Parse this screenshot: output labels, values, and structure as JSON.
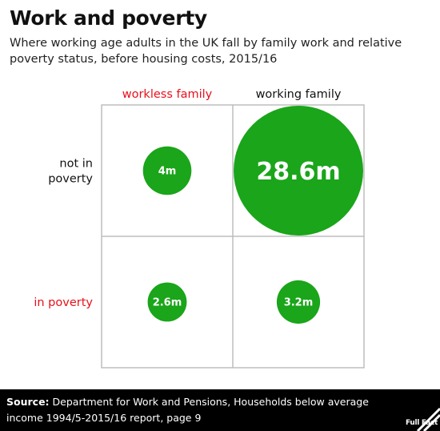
{
  "title": "Work and poverty",
  "subtitle": "Where working age adults in the UK fall by family work and relative poverty status, before housing costs, 2015/16",
  "source_label": "Source:",
  "source_text": "Department for Work and Pensions, Households below average income 1994/5-2015/16 report, page 9",
  "brand": "Full Fact",
  "colors": {
    "bubble": "#1aa51a",
    "highlight": "#e8101a",
    "text": "#111111",
    "grid": "#bdbdbd"
  },
  "chart_data": {
    "type": "bubble-matrix",
    "columns": [
      {
        "label": "workless family",
        "highlight": true
      },
      {
        "label": "working family",
        "highlight": false
      }
    ],
    "rows": [
      {
        "label": "not in poverty",
        "highlight": false
      },
      {
        "label": "in poverty",
        "highlight": true
      }
    ],
    "unit": "millions",
    "values": [
      {
        "row": 0,
        "col": 0,
        "value": 4.0,
        "label": "4m"
      },
      {
        "row": 0,
        "col": 1,
        "value": 28.6,
        "label": "28.6m"
      },
      {
        "row": 1,
        "col": 0,
        "value": 2.6,
        "label": "2.6m"
      },
      {
        "row": 1,
        "col": 1,
        "value": 3.2,
        "label": "3.2m"
      }
    ]
  }
}
